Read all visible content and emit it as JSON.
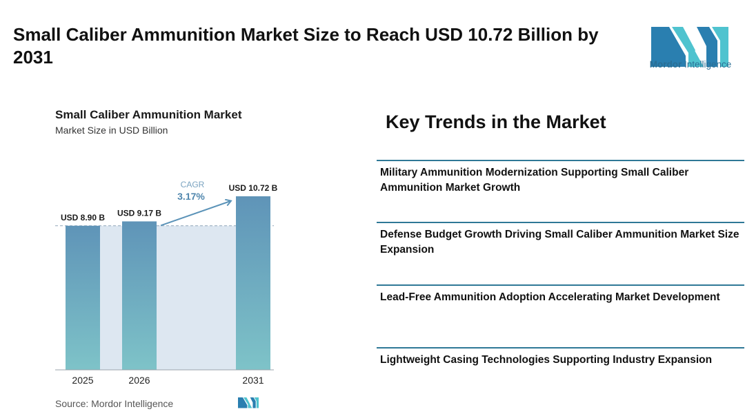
{
  "page": {
    "headline": "Small Caliber Ammunition Market Size to Reach USD 10.72 Billion by 2031"
  },
  "logo": {
    "brand_bold": "Mordor",
    "brand_rest": " Intelligence",
    "icon": "mordor-intelligence-logo-icon",
    "colors": {
      "teal": "#4fc3cf",
      "blue": "#2a7fb0"
    }
  },
  "chart_data": {
    "type": "bar",
    "title": "Small Caliber Ammunition Market",
    "subtitle": "Market Size in USD Billion",
    "categories": [
      "2025",
      "2026",
      "2031"
    ],
    "values": [
      8.9,
      9.17,
      10.72
    ],
    "data_labels": [
      "USD 8.90 B",
      "USD 9.17 B",
      "USD 10.72 B"
    ],
    "cagr": {
      "label": "CAGR",
      "value": "3.17%"
    },
    "ylim": [
      0,
      10.72
    ],
    "grid": false,
    "colors": {
      "bar_top": "#5f94b8",
      "bar_bottom": "#7ec3c8",
      "band": "#dde7f1",
      "arrow": "#5b93b8",
      "cagr_value": "#4f86ad"
    }
  },
  "source": {
    "text": "Source:  Mordor Intelligence"
  },
  "trends": {
    "title": "Key Trends in the Market",
    "items": [
      "Military Ammunition Modernization Supporting Small Caliber Ammunition Market Growth",
      "Defense Budget Growth Driving Small Caliber Ammunition Market Size Expansion",
      "Lead-Free Ammunition Adoption Accelerating Market Development",
      "Lightweight Casing Technologies Supporting Industry Expansion"
    ],
    "rule_color": "#2e7896"
  }
}
